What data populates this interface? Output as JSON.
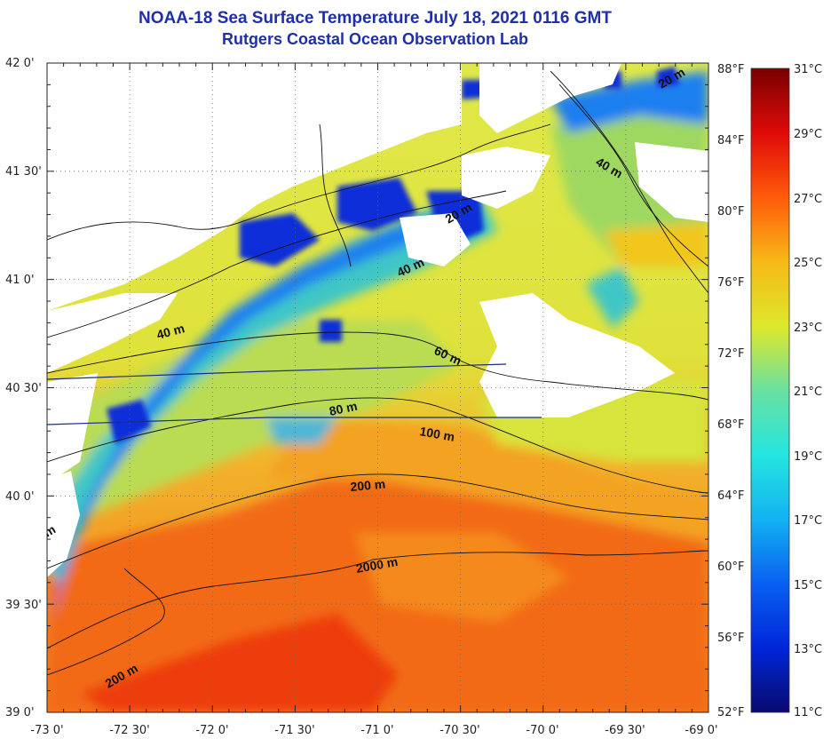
{
  "title": "NOAA-18 Sea Surface Temperature July 18, 2021 0116 GMT",
  "subtitle": "Rutgers Coastal Ocean Observation Lab",
  "colors": {
    "title": "#1f2fa8",
    "cloud_mask": "#ffffff",
    "land": "#ffffff",
    "shelf_line": "#1a2a8a"
  },
  "chart_data": {
    "type": "heatmap",
    "variable": "sea surface temperature",
    "lat_range": [
      39.0,
      42.0
    ],
    "lon_range": [
      -73.0,
      -69.0
    ],
    "lat_ticks": [
      "42 0'",
      "41 30'",
      "41 0'",
      "40 30'",
      "40 0'",
      "39 30'",
      "39 0'"
    ],
    "lon_ticks": [
      "-73 0'",
      "-72 30'",
      "-72 0'",
      "-71 30'",
      "-71 0'",
      "-70 30'",
      "-70 0'",
      "-69 30'",
      "-69 0'"
    ],
    "colorbar": {
      "celsius_range": [
        11,
        31
      ],
      "celsius_labels": [
        "31°C",
        "29°C",
        "27°C",
        "25°C",
        "23°C",
        "21°C",
        "19°C",
        "17°C",
        "15°C",
        "13°C",
        "11°C"
      ],
      "fahrenheit_labels": [
        "88°F",
        "84°F",
        "80°F",
        "76°F",
        "72°F",
        "68°F",
        "64°F",
        "60°F",
        "56°F",
        "52°F"
      ]
    },
    "depth_contour_labels": [
      "20 m",
      "40 m",
      "40 m",
      "40 m",
      "60 m",
      "80 m",
      "100 m",
      "200 m",
      "200 m",
      "2000 m",
      "m",
      "m"
    ],
    "grid": true
  }
}
